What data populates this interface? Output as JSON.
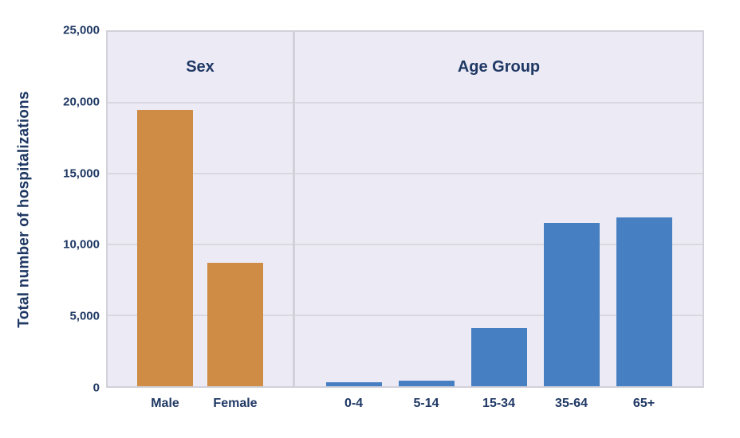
{
  "chart_data": {
    "type": "bar",
    "title": "",
    "xlabel": "",
    "ylabel": "Total number of hospitalizations",
    "ylim": [
      0,
      25000
    ],
    "ytick_interval": 5000,
    "grid": "horizontal",
    "legend_position": "none",
    "y_ticks": [
      {
        "label": "25,000",
        "value": 25000
      },
      {
        "label": "20,000",
        "value": 20000
      },
      {
        "label": "15,000",
        "value": 15000
      },
      {
        "label": "10,000",
        "value": 10000
      },
      {
        "label": "5,000",
        "value": 5000
      },
      {
        "label": "0",
        "value": 0
      }
    ],
    "groups": [
      {
        "label": "Sex",
        "categories": [
          "Male",
          "Female"
        ],
        "values": [
          19500,
          8700
        ],
        "bar_color": "#CE8C44",
        "panel_width": "31.1%"
      },
      {
        "label": "Age Group",
        "categories": [
          "0-4",
          "5-14",
          "15-34",
          "35-64",
          "65+"
        ],
        "values": [
          300,
          400,
          4100,
          11500,
          11900
        ],
        "bar_color": "#4680C2",
        "panel_width": "68.9%"
      }
    ],
    "colors": {
      "plot_background": "#ECEBF5",
      "gridline": "#D9D8E0",
      "panel_border": "#D2D1DA",
      "text": "#1F3864",
      "page_background": "#FFFFFF"
    }
  }
}
